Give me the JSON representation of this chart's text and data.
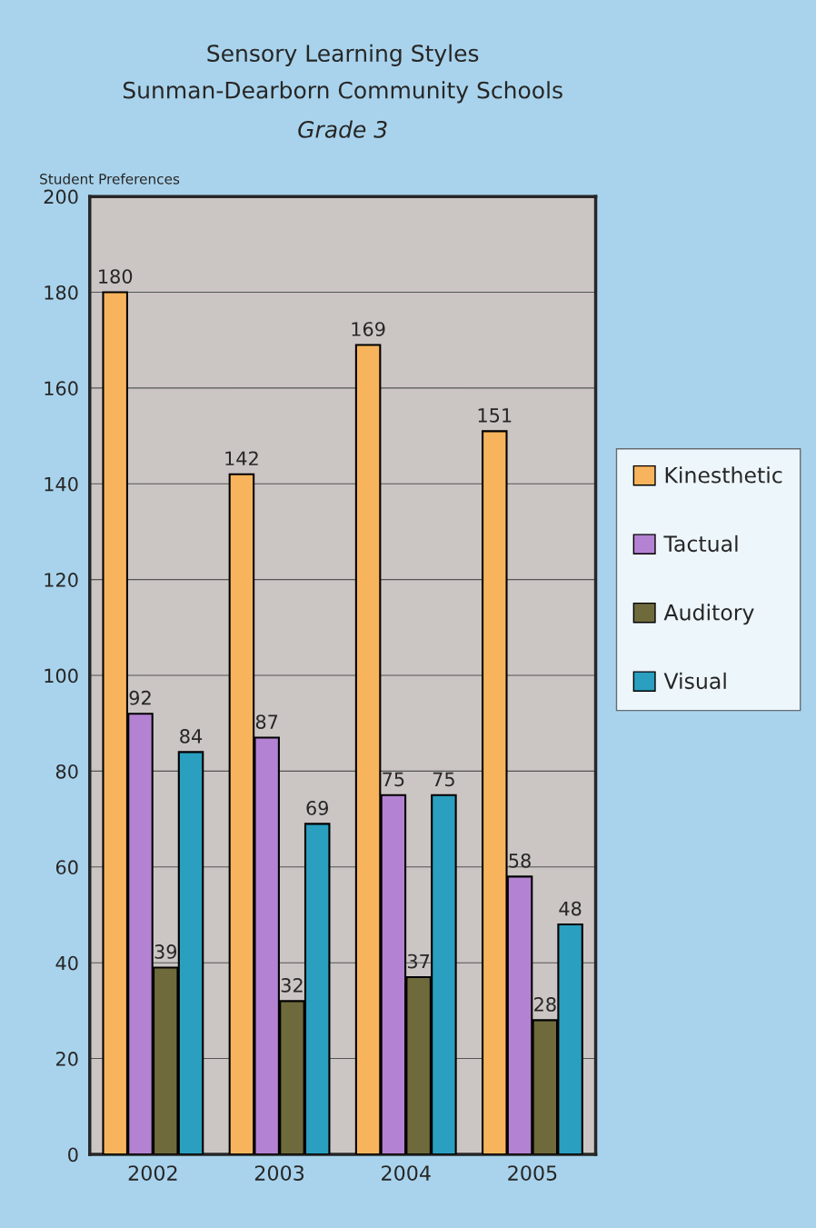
{
  "chart_data": {
    "type": "bar",
    "title": "Sensory Learning Styles",
    "subtitle": "Sunman-Dearborn Community Schools",
    "annotations": [
      "Grade 3"
    ],
    "ylabel": "Student Preferences",
    "categories": [
      "2002",
      "2003",
      "2004",
      "2005"
    ],
    "series": [
      {
        "name": "Kinesthetic",
        "color": "#f8b45c",
        "values": [
          180,
          142,
          169,
          151
        ]
      },
      {
        "name": "Tactual",
        "color": "#b482d2",
        "values": [
          92,
          87,
          75,
          58
        ]
      },
      {
        "name": "Auditory",
        "color": "#6e6a3c",
        "values": [
          39,
          32,
          37,
          28
        ]
      },
      {
        "name": "Visual",
        "color": "#2a9fc0",
        "values": [
          84,
          69,
          75,
          48
        ]
      }
    ],
    "ylim": [
      0,
      200
    ],
    "yticks": [
      0,
      20,
      40,
      60,
      80,
      100,
      120,
      140,
      160,
      180,
      200
    ],
    "grid": "y",
    "legend": "right",
    "data_labels": true
  }
}
